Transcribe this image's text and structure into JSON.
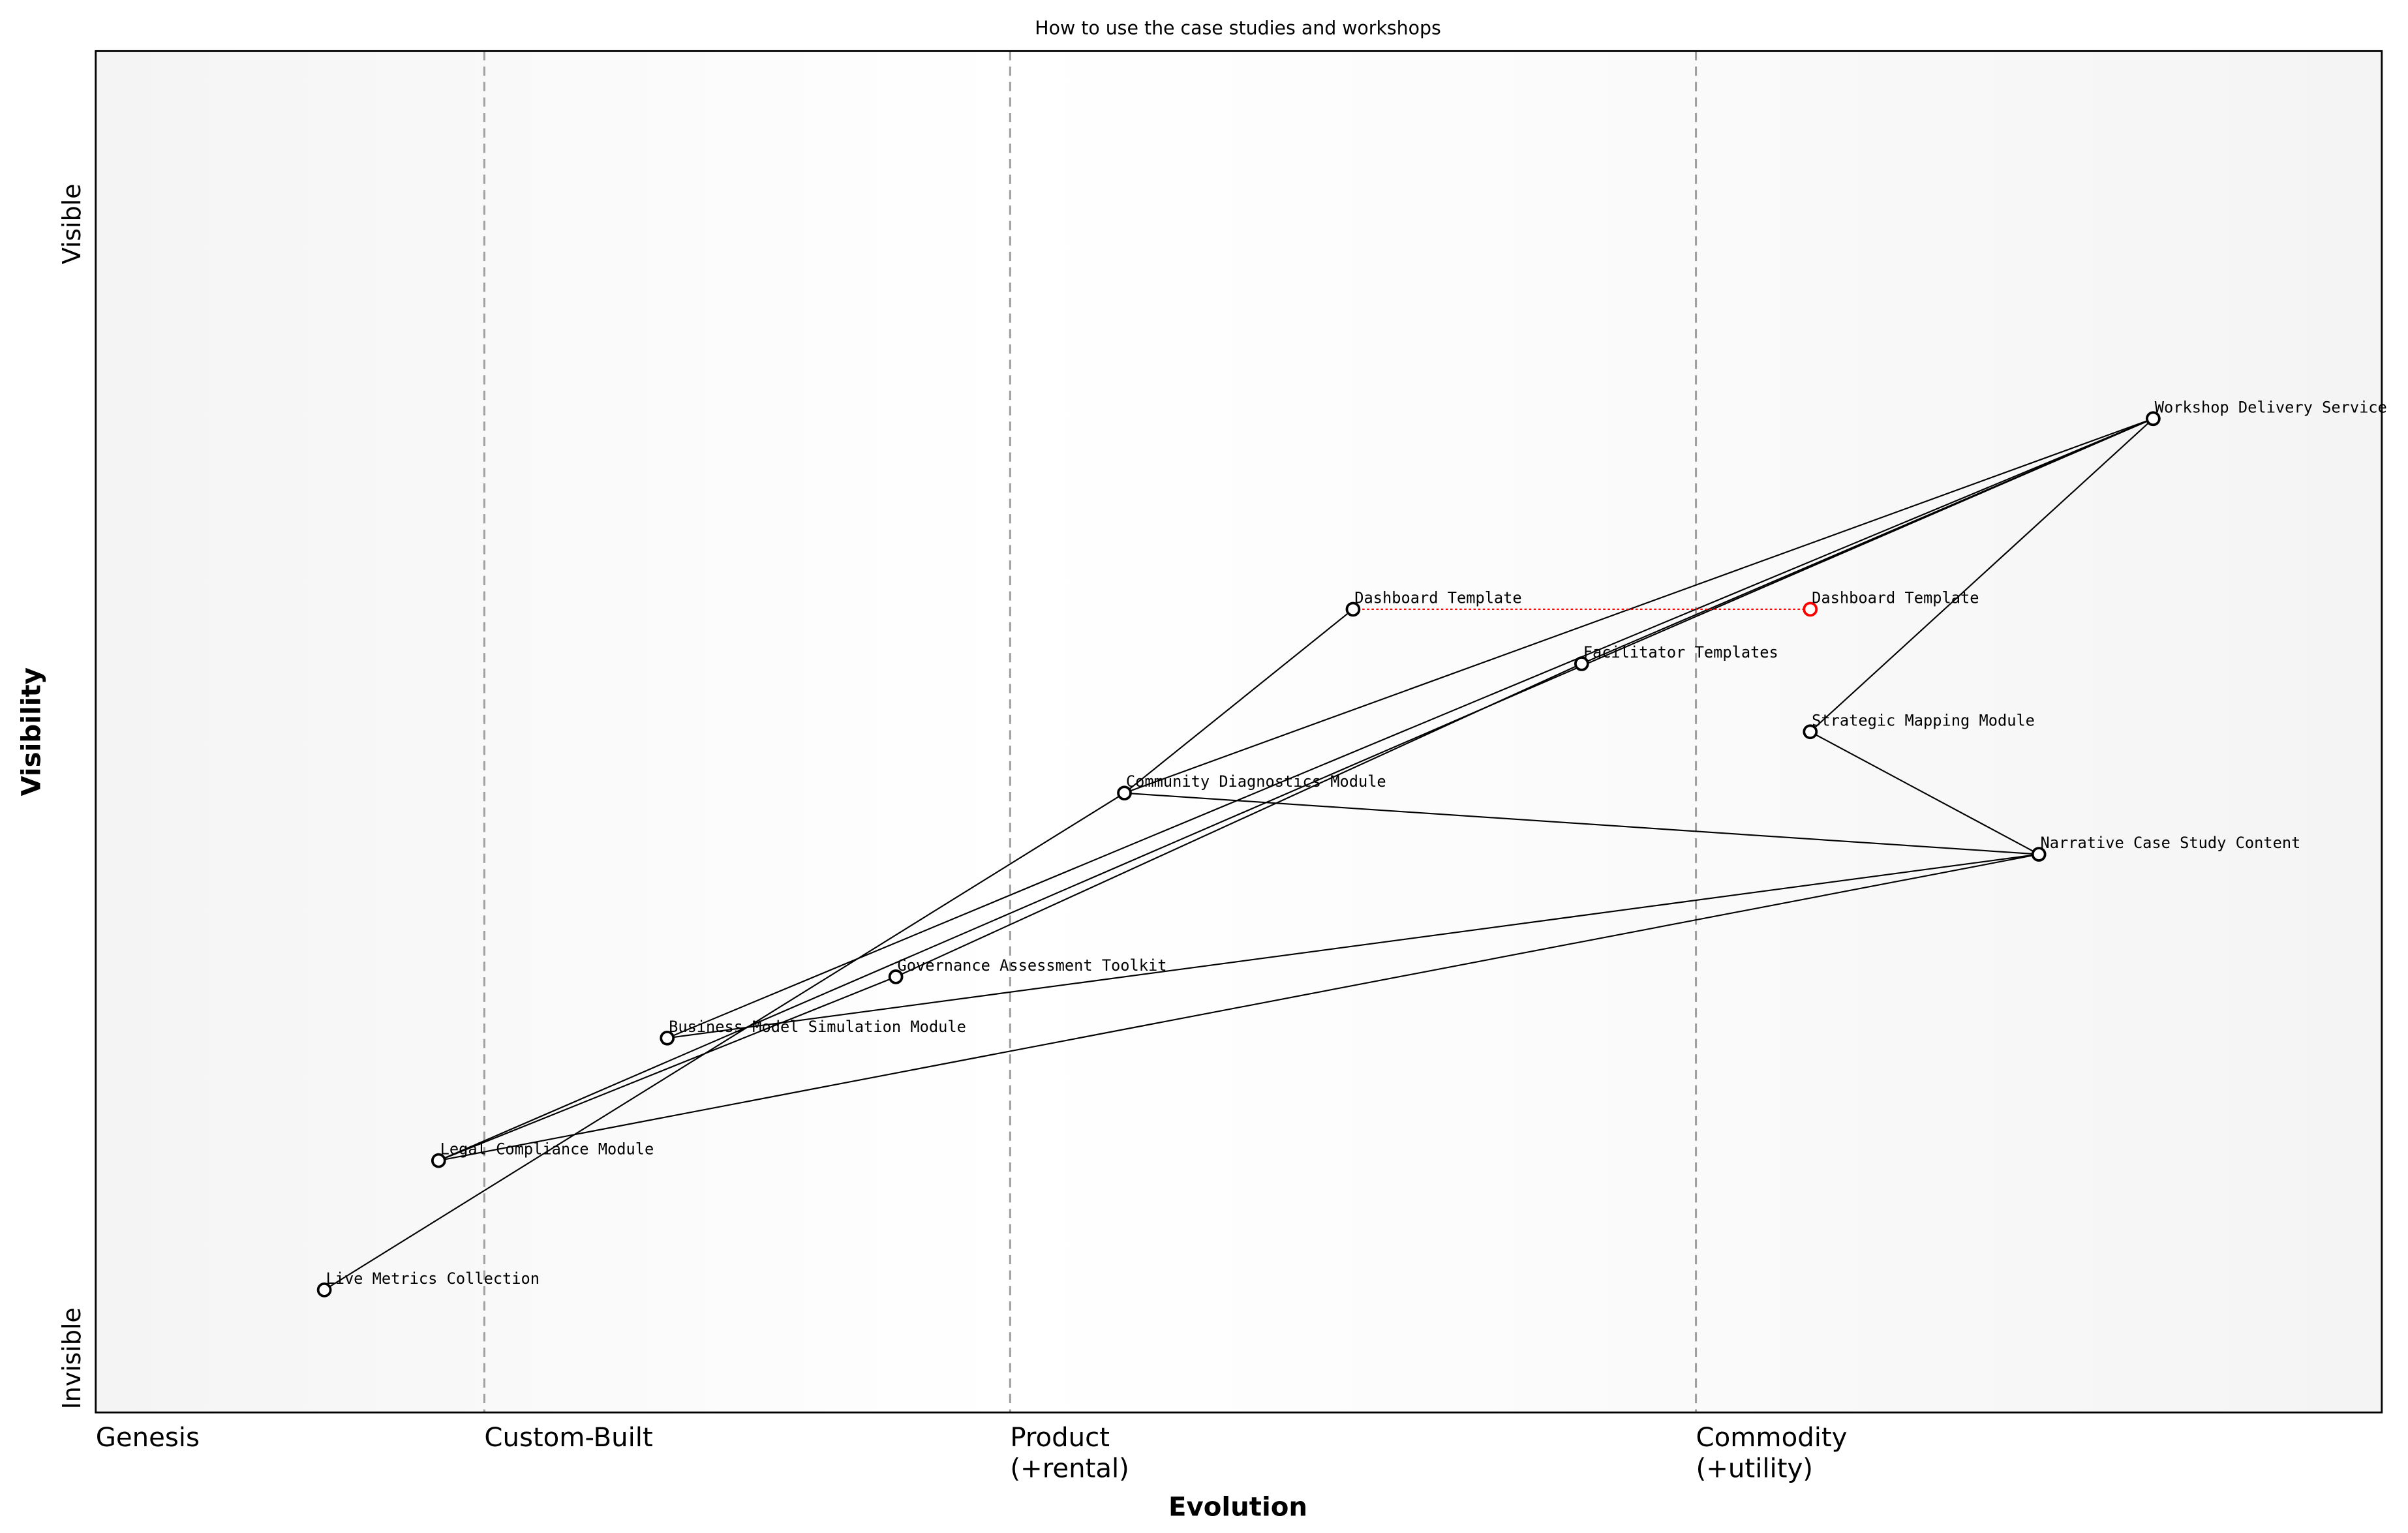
{
  "title": "How to use the case studies and workshops",
  "x_axis": {
    "label": "Evolution",
    "stages": [
      {
        "label": [
          "Genesis"
        ],
        "at": 0.0
      },
      {
        "label": [
          "Custom-Built"
        ],
        "at": 0.17
      },
      {
        "label": [
          "Product",
          "(+rental)"
        ],
        "at": 0.4
      },
      {
        "label": [
          "Commodity",
          "(+utility)"
        ],
        "at": 0.7
      }
    ]
  },
  "y_axis": {
    "label": "Visibility",
    "top_label": "Visible",
    "bottom_label": "Invisible"
  },
  "colors": {
    "node": "#000000",
    "evolved": "#ff0000",
    "stage_line": "#a0a0a0"
  },
  "components": [
    {
      "id": "workshop",
      "name": "Workshop Delivery Service",
      "evolution": 0.9,
      "visibility": 0.73
    },
    {
      "id": "dashboard",
      "name": "Dashboard Template",
      "evolution": 0.55,
      "visibility": 0.59
    },
    {
      "id": "facilitator",
      "name": "Facilitator Templates",
      "evolution": 0.65,
      "visibility": 0.55
    },
    {
      "id": "strategic",
      "name": "Strategic Mapping Module",
      "evolution": 0.75,
      "visibility": 0.5
    },
    {
      "id": "community",
      "name": "Community Diagnostics Module",
      "evolution": 0.45,
      "visibility": 0.455
    },
    {
      "id": "narrative",
      "name": "Narrative Case Study Content",
      "evolution": 0.85,
      "visibility": 0.41
    },
    {
      "id": "governance",
      "name": "Governance Assessment Toolkit",
      "evolution": 0.35,
      "visibility": 0.32
    },
    {
      "id": "business",
      "name": "Business Model Simulation Module",
      "evolution": 0.25,
      "visibility": 0.275
    },
    {
      "id": "legal",
      "name": "Legal Compliance Module",
      "evolution": 0.15,
      "visibility": 0.185
    },
    {
      "id": "live",
      "name": "Live Metrics Collection",
      "evolution": 0.1,
      "visibility": 0.09
    }
  ],
  "evolved_components": [
    {
      "from": "dashboard",
      "name": "Dashboard Template",
      "evolution": 0.75,
      "visibility": 0.59
    }
  ],
  "links": [
    [
      "workshop",
      "community"
    ],
    [
      "workshop",
      "facilitator"
    ],
    [
      "workshop",
      "legal"
    ],
    [
      "workshop",
      "business"
    ],
    [
      "workshop",
      "strategic"
    ],
    [
      "facilitator",
      "governance"
    ],
    [
      "governance",
      "legal"
    ],
    [
      "business",
      "narrative"
    ],
    [
      "legal",
      "narrative"
    ],
    [
      "community",
      "narrative"
    ],
    [
      "strategic",
      "narrative"
    ],
    [
      "community",
      "dashboard"
    ],
    [
      "community",
      "live"
    ]
  ]
}
